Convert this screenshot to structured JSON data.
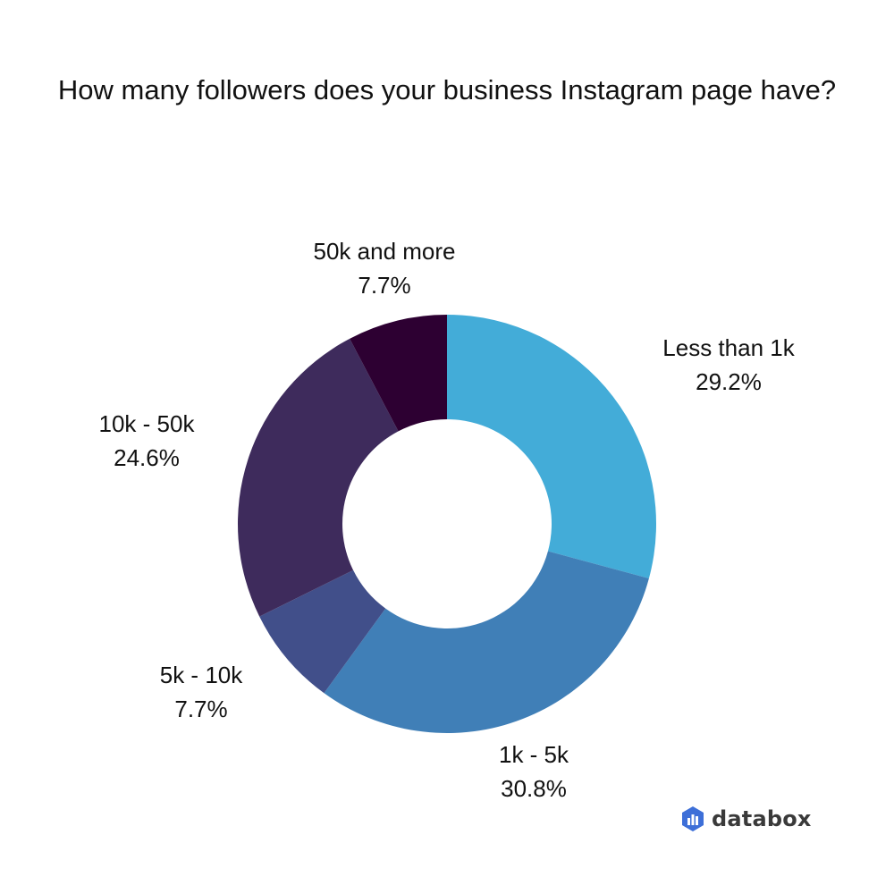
{
  "chart_data": {
    "type": "pie",
    "title": "How many followers does your business Instagram page have?",
    "donut": true,
    "slices": [
      {
        "label": "Less than 1k",
        "value": 29.2,
        "value_label": "29.2%",
        "color": "#43acd8"
      },
      {
        "label": "1k - 5k",
        "value": 30.8,
        "value_label": "30.8%",
        "color": "#407fb7"
      },
      {
        "label": "5k - 10k",
        "value": 7.7,
        "value_label": "7.7%",
        "color": "#414f8a"
      },
      {
        "label": "10k - 50k",
        "value": 24.6,
        "value_label": "24.6%",
        "color": "#3e2b5c"
      },
      {
        "label": "50k and more",
        "value": 7.7,
        "value_label": "7.7%",
        "color": "#2d0032"
      }
    ]
  },
  "brand": {
    "name": "databox",
    "icon": "databox-logo-icon"
  }
}
